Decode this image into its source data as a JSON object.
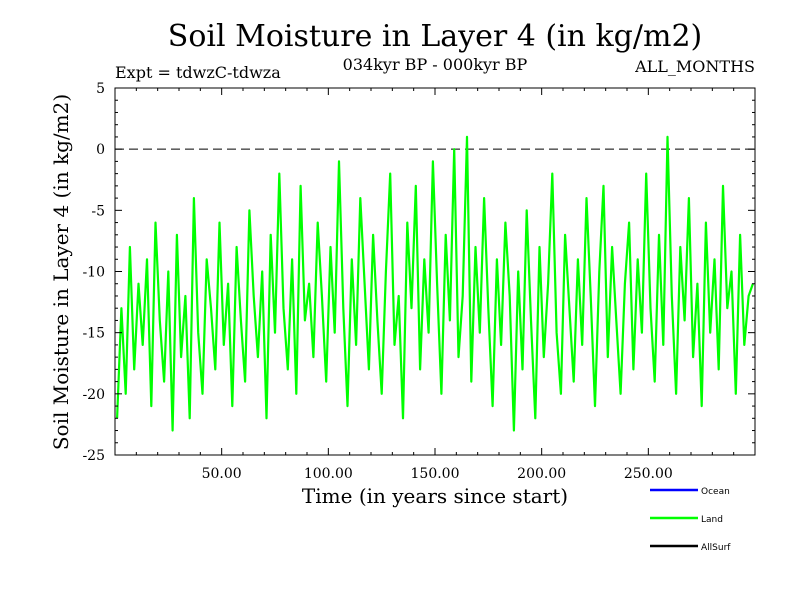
{
  "chart_data": {
    "type": "line",
    "title": "Soil Moisture in Layer 4 (in kg/m2)",
    "experiment_label": "Expt = tdwzC-tdwza",
    "period_label": "034kyr BP - 000kyr BP",
    "months_label": "ALL_MONTHS",
    "xlabel": "Time (in years since start)",
    "ylabel": "Soil Moisture in Layer 4 (in kg/m2)",
    "xlim": [
      0,
      300
    ],
    "ylim": [
      -25,
      5
    ],
    "x_ticks": [
      50,
      100,
      150,
      200,
      250
    ],
    "x_tick_labels": [
      "50.00",
      "100.00",
      "150.00",
      "200.00",
      "250.00"
    ],
    "y_ticks": [
      5,
      0,
      -5,
      -10,
      -15,
      -20,
      -25
    ],
    "y_tick_labels": [
      "5",
      "0",
      "-5",
      "-10",
      "-15",
      "-20",
      "-25"
    ],
    "reference_line": 0,
    "series": [
      {
        "name": "Ocean",
        "color": "#0000ff",
        "values": []
      },
      {
        "name": "Land",
        "color": "#00ff00",
        "x": [
          1,
          3,
          5,
          7,
          9,
          11,
          13,
          15,
          17,
          19,
          21,
          23,
          25,
          27,
          29,
          31,
          33,
          35,
          37,
          39,
          41,
          43,
          45,
          47,
          49,
          51,
          53,
          55,
          57,
          59,
          61,
          63,
          65,
          67,
          69,
          71,
          73,
          75,
          77,
          79,
          81,
          83,
          85,
          87,
          89,
          91,
          93,
          95,
          97,
          99,
          101,
          103,
          105,
          107,
          109,
          111,
          113,
          115,
          117,
          119,
          121,
          123,
          125,
          127,
          129,
          131,
          133,
          135,
          137,
          139,
          141,
          143,
          145,
          147,
          149,
          151,
          153,
          155,
          157,
          159,
          161,
          163,
          165,
          167,
          169,
          171,
          173,
          175,
          177,
          179,
          181,
          183,
          185,
          187,
          189,
          191,
          193,
          195,
          197,
          199,
          201,
          203,
          205,
          207,
          209,
          211,
          213,
          215,
          217,
          219,
          221,
          223,
          225,
          227,
          229,
          231,
          233,
          235,
          237,
          239,
          241,
          243,
          245,
          247,
          249,
          251,
          253,
          255,
          257,
          259,
          261,
          263,
          265,
          267,
          269,
          271,
          273,
          275,
          277,
          279,
          281,
          283,
          285,
          287,
          289,
          291,
          293,
          295,
          297,
          299
        ],
        "values": [
          -22,
          -13,
          -20,
          -8,
          -18,
          -11,
          -16,
          -9,
          -21,
          -6,
          -14,
          -19,
          -10,
          -23,
          -7,
          -17,
          -12,
          -22,
          -4,
          -15,
          -20,
          -9,
          -13,
          -18,
          -6,
          -16,
          -11,
          -21,
          -8,
          -14,
          -19,
          -5,
          -12,
          -17,
          -10,
          -22,
          -7,
          -15,
          -2,
          -13,
          -18,
          -9,
          -20,
          -3,
          -14,
          -11,
          -17,
          -6,
          -12,
          -19,
          -8,
          -15,
          -1,
          -13,
          -21,
          -9,
          -16,
          -4,
          -11,
          -18,
          -7,
          -14,
          -20,
          -10,
          -2,
          -16,
          -12,
          -22,
          -6,
          -13,
          -3,
          -18,
          -9,
          -15,
          -1,
          -11,
          -20,
          -7,
          -14,
          0,
          -17,
          -12,
          1,
          -19,
          -8,
          -15,
          -4,
          -13,
          -21,
          -9,
          -16,
          -6,
          -12,
          -23,
          -10,
          -18,
          -5,
          -14,
          -22,
          -8,
          -17,
          -11,
          -2,
          -15,
          -20,
          -7,
          -13,
          -19,
          -9,
          -16,
          -4,
          -12,
          -21,
          -10,
          -3,
          -17,
          -8,
          -14,
          -20,
          -11,
          -6,
          -18,
          -9,
          -15,
          -2,
          -13,
          -19,
          -7,
          -16,
          1,
          -12,
          -20,
          -8,
          -14,
          -4,
          -17,
          -11,
          -21,
          -6,
          -15,
          -9,
          -18,
          -3,
          -13,
          -10,
          -20,
          -7,
          -16,
          -12,
          -11
        ]
      },
      {
        "name": "AllSurf",
        "color": "#000000",
        "values": []
      }
    ],
    "legend_placement": "bottom-right",
    "grid": false
  }
}
